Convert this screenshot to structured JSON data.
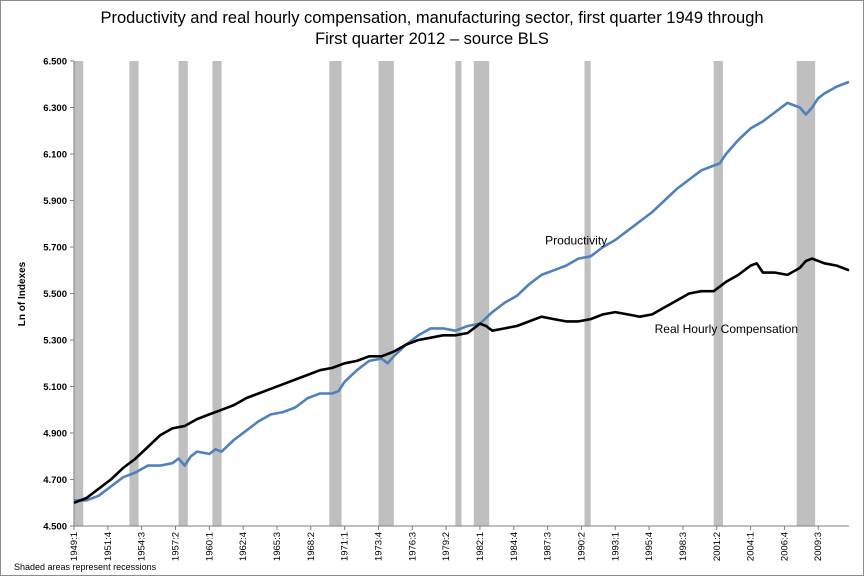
{
  "chart_data": {
    "type": "line",
    "title_line1": "Productivity and real hourly compensation, manufacturing sector, first quarter 1949 through",
    "title_line2": "First quarter 2012 – source BLS",
    "ylabel": "Ln of Indexes",
    "footnote": "Shaded areas represent recessions",
    "ylim": [
      4.5,
      6.5
    ],
    "y_ticks": [
      "4.500",
      "4.700",
      "4.900",
      "5.100",
      "5.300",
      "5.500",
      "5.700",
      "5.900",
      "6.100",
      "6.300",
      "6.500"
    ],
    "x_range": [
      1949.0,
      2012.0
    ],
    "x_ticks": [
      "1949:1",
      "1951:4",
      "1954:3",
      "1957:2",
      "1960:1",
      "1962:4",
      "1965:3",
      "1968:2",
      "1971:1",
      "1973:4",
      "1976:3",
      "1979:2",
      "1982:1",
      "1984:4",
      "1987:3",
      "1990:2",
      "1993:1",
      "1995:4",
      "1998:3",
      "2001:2",
      "2004:1",
      "2006:4",
      "2009:3"
    ],
    "recessions": [
      [
        1949.0,
        1949.75
      ],
      [
        1953.5,
        1954.25
      ],
      [
        1957.5,
        1958.25
      ],
      [
        1960.25,
        1961.0
      ],
      [
        1969.75,
        1970.75
      ],
      [
        1973.75,
        1975.0
      ],
      [
        1980.0,
        1980.5
      ],
      [
        1981.5,
        1982.75
      ],
      [
        1990.5,
        1991.0
      ],
      [
        2001.0,
        2001.75
      ],
      [
        2007.75,
        2009.25
      ]
    ],
    "series": [
      {
        "name": "Productivity",
        "color": "#4f81bd",
        "x": [
          1949.0,
          1950.0,
          1951.0,
          1952.0,
          1953.0,
          1954.0,
          1955.0,
          1956.0,
          1957.0,
          1957.5,
          1958.0,
          1958.5,
          1959.0,
          1960.0,
          1960.5,
          1961.0,
          1962.0,
          1963.0,
          1964.0,
          1965.0,
          1966.0,
          1967.0,
          1968.0,
          1969.0,
          1970.0,
          1970.5,
          1971.0,
          1972.0,
          1973.0,
          1974.0,
          1974.5,
          1975.0,
          1976.0,
          1977.0,
          1978.0,
          1979.0,
          1980.0,
          1981.0,
          1982.0,
          1983.0,
          1984.0,
          1985.0,
          1986.0,
          1987.0,
          1988.0,
          1989.0,
          1990.0,
          1991.0,
          1992.0,
          1993.0,
          1994.0,
          1995.0,
          1996.0,
          1997.0,
          1998.0,
          1999.0,
          2000.0,
          2001.0,
          2001.5,
          2002.0,
          2003.0,
          2004.0,
          2005.0,
          2006.0,
          2007.0,
          2008.0,
          2008.5,
          2009.0,
          2009.5,
          2010.0,
          2011.0,
          2012.0
        ],
        "values": [
          4.61,
          4.61,
          4.63,
          4.67,
          4.71,
          4.73,
          4.76,
          4.76,
          4.77,
          4.79,
          4.76,
          4.8,
          4.82,
          4.81,
          4.83,
          4.82,
          4.87,
          4.91,
          4.95,
          4.98,
          4.99,
          5.01,
          5.05,
          5.07,
          5.07,
          5.08,
          5.12,
          5.17,
          5.21,
          5.22,
          5.2,
          5.23,
          5.28,
          5.32,
          5.35,
          5.35,
          5.34,
          5.36,
          5.37,
          5.42,
          5.46,
          5.49,
          5.54,
          5.58,
          5.6,
          5.62,
          5.65,
          5.66,
          5.7,
          5.73,
          5.77,
          5.81,
          5.85,
          5.9,
          5.95,
          5.99,
          6.03,
          6.05,
          6.06,
          6.1,
          6.16,
          6.21,
          6.24,
          6.28,
          6.32,
          6.3,
          6.27,
          6.3,
          6.34,
          6.36,
          6.39,
          6.41
        ]
      },
      {
        "name": "Real Hourly Compensation",
        "color": "#000000",
        "x": [
          1949.0,
          1950.0,
          1951.0,
          1952.0,
          1953.0,
          1954.0,
          1955.0,
          1956.0,
          1957.0,
          1958.0,
          1959.0,
          1960.0,
          1961.0,
          1962.0,
          1963.0,
          1964.0,
          1965.0,
          1966.0,
          1967.0,
          1968.0,
          1969.0,
          1970.0,
          1971.0,
          1972.0,
          1973.0,
          1974.0,
          1975.0,
          1976.0,
          1977.0,
          1978.0,
          1979.0,
          1980.0,
          1981.0,
          1982.0,
          1982.5,
          1983.0,
          1984.0,
          1985.0,
          1986.0,
          1987.0,
          1988.0,
          1989.0,
          1990.0,
          1991.0,
          1992.0,
          1993.0,
          1994.0,
          1995.0,
          1996.0,
          1997.0,
          1998.0,
          1999.0,
          2000.0,
          2001.0,
          2002.0,
          2003.0,
          2004.0,
          2004.5,
          2005.0,
          2006.0,
          2007.0,
          2008.0,
          2008.5,
          2009.0,
          2010.0,
          2011.0,
          2012.0
        ],
        "values": [
          4.6,
          4.62,
          4.66,
          4.7,
          4.75,
          4.79,
          4.84,
          4.89,
          4.92,
          4.93,
          4.96,
          4.98,
          5.0,
          5.02,
          5.05,
          5.07,
          5.09,
          5.11,
          5.13,
          5.15,
          5.17,
          5.18,
          5.2,
          5.21,
          5.23,
          5.23,
          5.25,
          5.28,
          5.3,
          5.31,
          5.32,
          5.32,
          5.33,
          5.37,
          5.36,
          5.34,
          5.35,
          5.36,
          5.38,
          5.4,
          5.39,
          5.38,
          5.38,
          5.39,
          5.41,
          5.42,
          5.41,
          5.4,
          5.41,
          5.44,
          5.47,
          5.5,
          5.51,
          5.51,
          5.55,
          5.58,
          5.62,
          5.63,
          5.59,
          5.59,
          5.58,
          5.61,
          5.64,
          5.65,
          5.63,
          5.62,
          5.6
        ]
      }
    ],
    "annotations": [
      {
        "text": "Productivity",
        "x": 1987.3,
        "y": 5.71
      },
      {
        "text": "Real Hourly Compensation",
        "x": 1996.2,
        "y": 5.33
      }
    ]
  }
}
